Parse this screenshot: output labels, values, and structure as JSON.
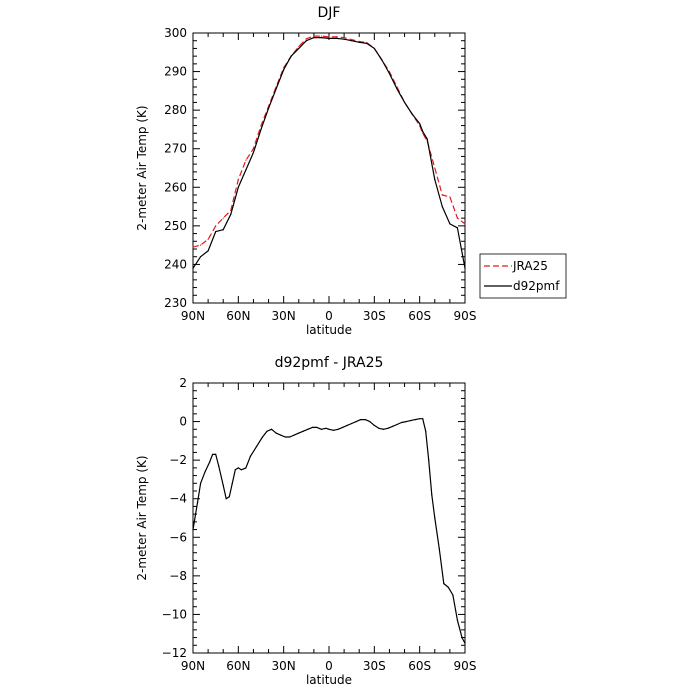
{
  "chart_data": [
    {
      "type": "line",
      "title": "DJF",
      "xlabel": "latitude",
      "ylabel": "2-meter Air Temp (K)",
      "ylim": [
        230,
        300
      ],
      "xlim": [
        90,
        -90
      ],
      "x_ticks": [
        "90N",
        "60N",
        "30N",
        "0",
        "30S",
        "60S",
        "90S"
      ],
      "y_ticks": [
        "230",
        "240",
        "250",
        "260",
        "270",
        "280",
        "290",
        "300"
      ],
      "legend": {
        "position": "right"
      },
      "series": [
        {
          "name": "JRA25",
          "color": "#e41a1c",
          "dash": "dashed",
          "x": [
            90,
            85,
            80,
            75,
            70,
            65,
            60,
            55,
            50,
            45,
            40,
            35,
            30,
            25,
            20,
            15,
            10,
            5,
            0,
            -5,
            -10,
            -15,
            -20,
            -25,
            -30,
            -35,
            -40,
            -45,
            -50,
            -55,
            -60,
            -62,
            -65,
            -70,
            -75,
            -80,
            -85,
            -90
          ],
          "values": [
            244.5,
            245,
            246.5,
            250,
            252,
            254,
            262,
            267,
            270,
            276,
            281,
            286,
            291,
            294,
            296.5,
            298.5,
            299.2,
            299.2,
            299,
            299,
            298.8,
            298.3,
            297.8,
            297.5,
            296,
            293,
            290,
            286,
            282,
            279,
            276,
            274,
            272,
            265,
            258,
            257.5,
            252,
            250.5
          ]
        },
        {
          "name": "d92pmf",
          "color": "#000000",
          "dash": "solid",
          "x": [
            90,
            85,
            80,
            75,
            70,
            65,
            60,
            55,
            50,
            45,
            40,
            35,
            30,
            25,
            20,
            15,
            10,
            5,
            0,
            -5,
            -10,
            -15,
            -20,
            -25,
            -30,
            -35,
            -40,
            -45,
            -50,
            -55,
            -60,
            -62,
            -65,
            -70,
            -75,
            -80,
            -85,
            -90
          ],
          "values": [
            239,
            242,
            243.5,
            248.5,
            249,
            253,
            260,
            264.5,
            269,
            275,
            280.5,
            285.5,
            290.5,
            294,
            296,
            298,
            298.8,
            298.8,
            298.6,
            298.6,
            298.4,
            298,
            297.6,
            297.3,
            296,
            293,
            289.5,
            285.5,
            282,
            279,
            276.5,
            274.5,
            272.5,
            262,
            255,
            250.5,
            249.5,
            239
          ]
        }
      ]
    },
    {
      "type": "line",
      "title": "d92pmf - JRA25",
      "xlabel": "latitude",
      "ylabel": "2-meter Air Temp (K)",
      "ylim": [
        -12,
        2
      ],
      "xlim": [
        90,
        -90
      ],
      "x_ticks": [
        "90N",
        "60N",
        "30N",
        "0",
        "30S",
        "60S",
        "90S"
      ],
      "y_ticks": [
        "−12",
        "−10",
        "−8",
        "−6",
        "−4",
        "−2",
        "0",
        "2"
      ],
      "series": [
        {
          "name": "d92pmf - JRA25",
          "color": "#000000",
          "x": [
            90,
            87,
            85,
            82,
            79,
            77,
            75,
            73,
            70,
            68,
            66,
            64,
            62,
            60,
            58,
            55,
            52,
            48,
            44,
            41,
            38,
            35,
            32,
            29,
            26,
            23,
            20,
            17,
            14,
            11,
            8,
            5,
            2,
            0,
            -3,
            -6,
            -9,
            -12,
            -15,
            -18,
            -21,
            -24,
            -27,
            -30,
            -33,
            -36,
            -39,
            -42,
            -45,
            -48,
            -51,
            -54,
            -57,
            -60,
            -62,
            -64,
            -66,
            -68,
            -70,
            -73,
            -76,
            -79,
            -82,
            -85,
            -88,
            -90
          ],
          "values": [
            -5.6,
            -4.2,
            -3.2,
            -2.6,
            -2.1,
            -1.7,
            -1.7,
            -2.3,
            -3.3,
            -4.0,
            -3.9,
            -3.2,
            -2.5,
            -2.4,
            -2.5,
            -2.4,
            -1.8,
            -1.3,
            -0.8,
            -0.5,
            -0.4,
            -0.6,
            -0.7,
            -0.8,
            -0.8,
            -0.7,
            -0.6,
            -0.5,
            -0.4,
            -0.3,
            -0.3,
            -0.4,
            -0.35,
            -0.4,
            -0.45,
            -0.4,
            -0.3,
            -0.2,
            -0.1,
            0.0,
            0.1,
            0.1,
            0.0,
            -0.2,
            -0.35,
            -0.4,
            -0.35,
            -0.25,
            -0.15,
            -0.05,
            0.0,
            0.05,
            0.1,
            0.15,
            0.15,
            -0.5,
            -2.0,
            -3.8,
            -5.0,
            -6.6,
            -8.4,
            -8.6,
            -9.0,
            -10.3,
            -11.2,
            -11.5
          ]
        }
      ]
    }
  ]
}
